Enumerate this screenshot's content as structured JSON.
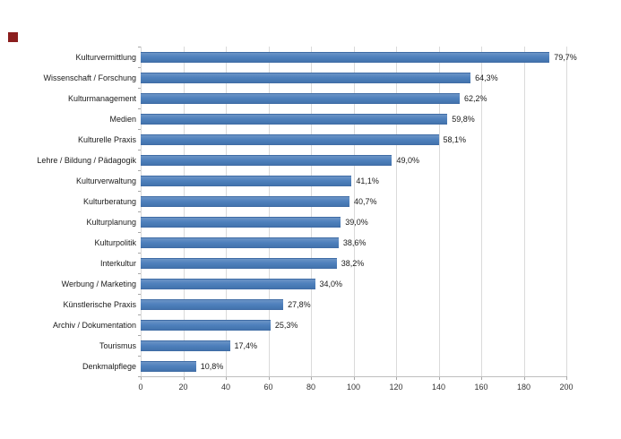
{
  "page": {
    "background": "#ffffff"
  },
  "corner_mark": {
    "color": "#8b1e1e"
  },
  "chart_data": {
    "type": "bar",
    "orientation": "horizontal",
    "title": "",
    "categories": [
      "Kulturvermittlung",
      "Wissenschaft / Forschung",
      "Kulturmanagement",
      "Medien",
      "Kulturelle Praxis",
      "Lehre / Bildung / Pädagogik",
      "Kulturverwaltung",
      "Kulturberatung",
      "Kulturplanung",
      "Kulturpolitik",
      "Interkultur",
      "Werbung / Marketing",
      "Künstlerische Praxis",
      "Archiv / Dokumentation",
      "Tourismus",
      "Denkmalpflege"
    ],
    "values_percent": [
      79.7,
      64.3,
      62.2,
      59.8,
      58.1,
      49.0,
      41.1,
      40.7,
      39.0,
      38.6,
      38.2,
      34.0,
      27.8,
      25.3,
      17.4,
      10.8
    ],
    "value_labels": [
      "79,7%",
      "64,3%",
      "62,2%",
      "59,8%",
      "58,1%",
      "49,0%",
      "41,1%",
      "40,7%",
      "39,0%",
      "38,6%",
      "38,2%",
      "34,0%",
      "27,8%",
      "25,3%",
      "17,4%",
      "10,8%"
    ],
    "axis_values": [
      192.1,
      155.0,
      149.9,
      144.1,
      140.0,
      118.1,
      99.1,
      98.1,
      94.0,
      93.0,
      92.1,
      81.9,
      67.0,
      61.0,
      41.9,
      26.0
    ],
    "xlim": [
      0,
      200
    ],
    "x_ticks": [
      0,
      20,
      40,
      60,
      80,
      100,
      120,
      140,
      160,
      180,
      200
    ],
    "x_tick_labels": [
      "0",
      "20",
      "40",
      "60",
      "80",
      "100",
      "120",
      "140",
      "160",
      "180",
      "200"
    ],
    "grid": true,
    "legend": false,
    "bar_color": "#4f81bd",
    "bar_color_light": "#6c94c6",
    "bar_color_dark": "#4373ad",
    "bar_edge_color": "#3f6ca5",
    "gridline_color": "#dadada",
    "axis_color": "#bfbfbf",
    "tick_color": "#a8a8a8",
    "text_color": "#1a1a1a"
  }
}
